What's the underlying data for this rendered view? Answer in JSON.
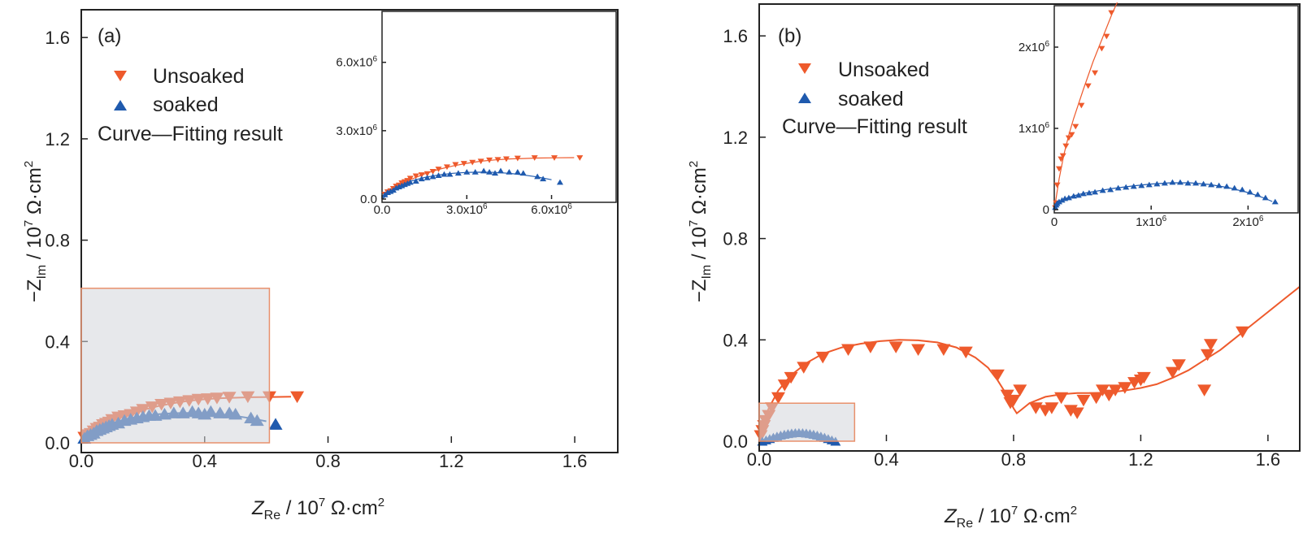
{
  "colors": {
    "unsoaked": "#EE5A2C",
    "soaked": "#1F5AAE",
    "highlight_fill": "#D3D6DA",
    "highlight_stroke": "#E8906C"
  },
  "chart_data": [
    {
      "type": "scatter",
      "panel_label": "(a)",
      "xlabel": {
        "main": "Z",
        "sub": "Re",
        "unit_prefix": " / 10",
        "exp": "7",
        "unit": " Ω·cm",
        "unit_exp": "2"
      },
      "ylabel": {
        "main": "−Z",
        "sub": "Im",
        "unit_prefix": " / 10",
        "exp": "7",
        "unit": " Ω·cm",
        "unit_exp": "2"
      },
      "xlim": [
        0,
        1.7
      ],
      "ylim": [
        0,
        1.7
      ],
      "xticks": [
        "0.0",
        "0.4",
        "0.8",
        "1.2",
        "1.6"
      ],
      "yticks": [
        "0.0",
        "0.4",
        "0.8",
        "1.2",
        "1.6"
      ],
      "legend": {
        "unsoaked": "Unsoaked",
        "soaked": "soaked",
        "curve": "Curve—Fitting result"
      },
      "highlight_region": {
        "x": [
          0,
          0.61
        ],
        "y": [
          0,
          0.61
        ]
      },
      "series": [
        {
          "name": "Unsoaked",
          "marker": "triangle-down",
          "color": "#EE5A2C",
          "x": [
            0.01,
            0.02,
            0.03,
            0.04,
            0.05,
            0.06,
            0.07,
            0.08,
            0.09,
            0.1,
            0.12,
            0.14,
            0.16,
            0.18,
            0.2,
            0.23,
            0.26,
            0.29,
            0.32,
            0.35,
            0.38,
            0.41,
            0.44,
            0.48,
            0.54,
            0.61,
            0.7
          ],
          "y": [
            0.02,
            0.03,
            0.035,
            0.045,
            0.055,
            0.06,
            0.07,
            0.075,
            0.08,
            0.09,
            0.1,
            0.105,
            0.11,
            0.12,
            0.13,
            0.14,
            0.15,
            0.155,
            0.16,
            0.165,
            0.17,
            0.172,
            0.175,
            0.178,
            0.18,
            0.18,
            0.18
          ]
        },
        {
          "name": "soaked",
          "marker": "triangle-up",
          "color": "#1F5AAE",
          "x": [
            0.01,
            0.02,
            0.03,
            0.04,
            0.05,
            0.06,
            0.07,
            0.08,
            0.09,
            0.1,
            0.12,
            0.14,
            0.16,
            0.18,
            0.2,
            0.22,
            0.24,
            0.27,
            0.3,
            0.33,
            0.36,
            0.38,
            0.4,
            0.42,
            0.45,
            0.48,
            0.5,
            0.55,
            0.57,
            0.63
          ],
          "y": [
            0.02,
            0.03,
            0.035,
            0.04,
            0.05,
            0.055,
            0.06,
            0.065,
            0.07,
            0.075,
            0.08,
            0.09,
            0.095,
            0.1,
            0.105,
            0.11,
            0.11,
            0.115,
            0.12,
            0.12,
            0.125,
            0.12,
            0.115,
            0.125,
            0.12,
            0.12,
            0.115,
            0.1,
            0.09,
            0.075
          ]
        }
      ],
      "fits": [
        {
          "color": "#EE5A2C",
          "x": [
            0,
            0.05,
            0.1,
            0.15,
            0.2,
            0.25,
            0.3,
            0.35,
            0.4,
            0.45,
            0.5,
            0.55,
            0.62,
            0.68
          ],
          "y": [
            0,
            0.05,
            0.085,
            0.11,
            0.13,
            0.145,
            0.157,
            0.166,
            0.172,
            0.176,
            0.178,
            0.18,
            0.181,
            0.182
          ]
        },
        {
          "color": "#1F5AAE",
          "x": [
            0,
            0.05,
            0.1,
            0.15,
            0.2,
            0.25,
            0.3,
            0.35,
            0.4,
            0.45,
            0.5,
            0.55,
            0.6
          ],
          "y": [
            0,
            0.05,
            0.078,
            0.095,
            0.106,
            0.113,
            0.117,
            0.118,
            0.117,
            0.113,
            0.106,
            0.097,
            0.085
          ]
        }
      ],
      "inset": {
        "xlim": [
          0,
          8.2
        ],
        "ylim": [
          0,
          8.2
        ],
        "xticks": [
          "0.0",
          "3.0x10",
          "6.0x10"
        ],
        "xticks_exp": [
          "",
          "6",
          "6"
        ],
        "yticks": [
          "0.0",
          "3.0x10",
          "6.0x10"
        ],
        "yticks_exp": [
          "",
          "6",
          "6"
        ],
        "series": [
          {
            "name": "Unsoaked",
            "marker": "triangle-down",
            "color": "#EE5A2C",
            "x": [
              0.1,
              0.2,
              0.3,
              0.4,
              0.5,
              0.6,
              0.7,
              0.8,
              0.9,
              1.0,
              1.2,
              1.4,
              1.6,
              1.8,
              2.0,
              2.3,
              2.6,
              2.9,
              3.2,
              3.5,
              3.8,
              4.1,
              4.4,
              4.8,
              5.4,
              6.1,
              7.0
            ],
            "y": [
              0.2,
              0.3,
              0.35,
              0.45,
              0.55,
              0.6,
              0.7,
              0.75,
              0.8,
              0.9,
              1.0,
              1.05,
              1.1,
              1.2,
              1.3,
              1.4,
              1.5,
              1.55,
              1.6,
              1.65,
              1.7,
              1.72,
              1.75,
              1.78,
              1.8,
              1.8,
              1.8
            ]
          },
          {
            "name": "soaked",
            "marker": "triangle-up",
            "color": "#1F5AAE",
            "x": [
              0.1,
              0.2,
              0.3,
              0.4,
              0.5,
              0.6,
              0.7,
              0.8,
              0.9,
              1.0,
              1.2,
              1.4,
              1.6,
              1.8,
              2.0,
              2.2,
              2.4,
              2.7,
              3.0,
              3.3,
              3.6,
              3.8,
              4.0,
              4.2,
              4.5,
              4.8,
              5.0,
              5.5,
              5.7,
              6.3
            ],
            "y": [
              0.2,
              0.3,
              0.35,
              0.4,
              0.5,
              0.55,
              0.6,
              0.65,
              0.7,
              0.75,
              0.8,
              0.9,
              0.95,
              1.0,
              1.05,
              1.1,
              1.1,
              1.15,
              1.2,
              1.2,
              1.25,
              1.2,
              1.15,
              1.25,
              1.2,
              1.2,
              1.15,
              1.0,
              0.9,
              0.75
            ]
          }
        ],
        "fits": [
          {
            "color": "#EE5A2C",
            "x": [
              0,
              0.5,
              1,
              1.5,
              2,
              2.5,
              3,
              3.5,
              4,
              4.5,
              5,
              5.5,
              6.2,
              6.8
            ],
            "y": [
              0,
              0.5,
              0.85,
              1.1,
              1.3,
              1.45,
              1.57,
              1.66,
              1.72,
              1.76,
              1.78,
              1.8,
              1.81,
              1.82
            ]
          },
          {
            "color": "#1F5AAE",
            "x": [
              0,
              0.5,
              1,
              1.5,
              2,
              2.5,
              3,
              3.5,
              4,
              4.5,
              5,
              5.5,
              6
            ],
            "y": [
              0,
              0.5,
              0.78,
              0.95,
              1.06,
              1.13,
              1.17,
              1.18,
              1.17,
              1.13,
              1.06,
              0.97,
              0.85
            ]
          }
        ]
      }
    },
    {
      "type": "scatter",
      "panel_label": "(b)",
      "xlabel": {
        "main": "Z",
        "sub": "Re",
        "unit_prefix": " / 10",
        "exp": "7",
        "unit": " Ω·cm",
        "unit_exp": "2"
      },
      "ylabel": {
        "main": "−Z",
        "sub": "Im",
        "unit_prefix": " / 10",
        "exp": "7",
        "unit": " Ω·cm",
        "unit_exp": "2"
      },
      "xlim": [
        0,
        1.7
      ],
      "ylim": [
        0,
        1.7
      ],
      "xticks": [
        "0.0",
        "0.4",
        "0.8",
        "1.2",
        "1.6"
      ],
      "yticks": [
        "0.0",
        "0.4",
        "0.8",
        "1.2",
        "1.6"
      ],
      "legend": {
        "unsoaked": "Unsoaked",
        "soaked": "soaked",
        "curve": "Curve—Fitting result"
      },
      "highlight_region": {
        "x": [
          0,
          0.3
        ],
        "y": [
          0,
          0.15
        ]
      },
      "series": [
        {
          "name": "Unsoaked",
          "marker": "triangle-down",
          "color": "#EE5A2C",
          "x": [
            0.005,
            0.01,
            0.015,
            0.02,
            0.03,
            0.04,
            0.06,
            0.08,
            0.1,
            0.14,
            0.2,
            0.28,
            0.35,
            0.43,
            0.5,
            0.58,
            0.65,
            0.75,
            0.78,
            0.79,
            0.8,
            0.82,
            0.87,
            0.9,
            0.92,
            0.95,
            0.98,
            1.0,
            1.02,
            1.06,
            1.08,
            1.1,
            1.12,
            1.15,
            1.18,
            1.2,
            1.21,
            1.3,
            1.32,
            1.4,
            1.41,
            1.42,
            1.52
          ],
          "y": [
            0.02,
            0.04,
            0.06,
            0.08,
            0.1,
            0.13,
            0.17,
            0.22,
            0.25,
            0.29,
            0.33,
            0.36,
            0.37,
            0.37,
            0.36,
            0.36,
            0.35,
            0.26,
            0.18,
            0.15,
            0.16,
            0.2,
            0.13,
            0.12,
            0.13,
            0.17,
            0.12,
            0.11,
            0.16,
            0.17,
            0.2,
            0.18,
            0.2,
            0.21,
            0.23,
            0.24,
            0.25,
            0.27,
            0.3,
            0.2,
            0.34,
            0.38,
            0.43
          ]
        }
      ],
      "fits": [
        {
          "color": "#EE5A2C",
          "x": [
            0,
            0.01,
            0.03,
            0.06,
            0.1,
            0.15,
            0.2,
            0.26,
            0.32,
            0.38,
            0.44,
            0.5,
            0.56,
            0.62,
            0.68,
            0.72,
            0.75,
            0.78,
            0.8,
            0.81,
            0.82,
            0.85,
            0.9,
            0.95,
            1.0,
            1.05,
            1.1,
            1.15,
            1.2,
            1.25,
            1.3,
            1.35,
            1.4,
            1.45,
            1.5,
            1.55,
            1.6,
            1.65,
            1.7
          ],
          "y": [
            0,
            0.07,
            0.13,
            0.2,
            0.26,
            0.31,
            0.345,
            0.37,
            0.385,
            0.395,
            0.4,
            0.398,
            0.39,
            0.37,
            0.33,
            0.29,
            0.24,
            0.18,
            0.13,
            0.11,
            0.12,
            0.15,
            0.175,
            0.185,
            0.19,
            0.19,
            0.192,
            0.2,
            0.21,
            0.225,
            0.25,
            0.28,
            0.32,
            0.36,
            0.41,
            0.46,
            0.51,
            0.56,
            0.61
          ]
        }
      ],
      "inset": {
        "xlim": [
          0,
          2.5
        ],
        "ylim": [
          0,
          2.5
        ],
        "xticks": [
          "0",
          "1x10",
          "2x10"
        ],
        "xticks_exp": [
          "",
          "6",
          "6"
        ],
        "yticks": [
          "0",
          "1x10",
          "2x10"
        ],
        "yticks_exp": [
          "",
          "6",
          "6"
        ],
        "series": [
          {
            "name": "Unsoaked",
            "marker": "triangle-down",
            "color": "#EE5A2C",
            "x": [
              0.01,
              0.02,
              0.03,
              0.05,
              0.07,
              0.09,
              0.12,
              0.15,
              0.18,
              0.22,
              0.28,
              0.35,
              0.42,
              0.49,
              0.54,
              0.59
            ],
            "y": [
              0.02,
              0.08,
              0.3,
              0.5,
              0.62,
              0.66,
              0.78,
              0.88,
              0.92,
              1.02,
              1.28,
              1.52,
              1.68,
              1.98,
              2.13,
              2.42
            ]
          },
          {
            "name": "soaked",
            "marker": "triangle-up",
            "color": "#1F5AAE",
            "x": [
              0.01,
              0.02,
              0.03,
              0.05,
              0.08,
              0.11,
              0.15,
              0.2,
              0.25,
              0.3,
              0.36,
              0.42,
              0.5,
              0.58,
              0.66,
              0.74,
              0.82,
              0.9,
              0.98,
              1.06,
              1.14,
              1.22,
              1.3,
              1.38,
              1.46,
              1.54,
              1.62,
              1.7,
              1.78,
              1.86,
              1.94,
              2.02,
              2.1,
              2.18,
              2.28
            ],
            "y": [
              0.03,
              0.06,
              0.08,
              0.1,
              0.12,
              0.14,
              0.15,
              0.17,
              0.18,
              0.2,
              0.21,
              0.22,
              0.24,
              0.25,
              0.27,
              0.28,
              0.29,
              0.3,
              0.31,
              0.32,
              0.33,
              0.34,
              0.34,
              0.33,
              0.33,
              0.32,
              0.31,
              0.3,
              0.29,
              0.27,
              0.25,
              0.22,
              0.19,
              0.15,
              0.1
            ]
          }
        ],
        "fits": [
          {
            "color": "#EE5A2C",
            "x": [
              0,
              0.02,
              0.05,
              0.1,
              0.15,
              0.2,
              0.3,
              0.4,
              0.5,
              0.6,
              0.65
            ],
            "y": [
              0,
              0.15,
              0.38,
              0.68,
              0.92,
              1.12,
              1.48,
              1.82,
              2.12,
              2.42,
              2.55
            ]
          },
          {
            "color": "#1F5AAE",
            "x": [
              0,
              0.05,
              0.1,
              0.2,
              0.3,
              0.45,
              0.6,
              0.8,
              1.0,
              1.2,
              1.4,
              1.6,
              1.8,
              2.0,
              2.15,
              2.25
            ],
            "y": [
              0,
              0.09,
              0.13,
              0.17,
              0.2,
              0.23,
              0.26,
              0.29,
              0.315,
              0.33,
              0.33,
              0.31,
              0.27,
              0.21,
              0.15,
              0.1
            ]
          }
        ]
      }
    }
  ]
}
